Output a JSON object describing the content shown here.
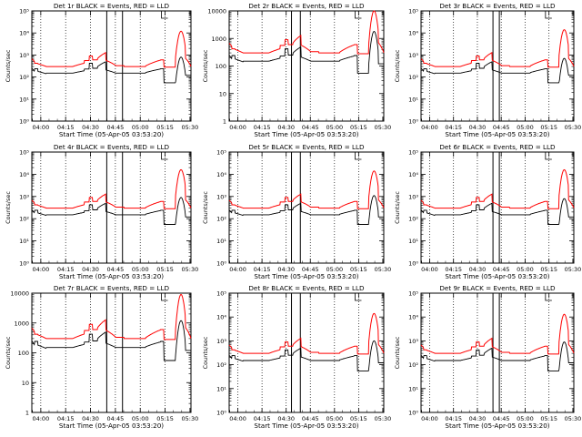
{
  "figure": {
    "xlabel": "Start Time (05-Apr-05 03:53:20)",
    "ylabel": "Counts/sec",
    "xticks": [
      "04:00",
      "04:15",
      "04:30",
      "04:45",
      "05:00",
      "05:15",
      "05:30"
    ],
    "colors": {
      "events": "#000000",
      "lld": "#ff0000",
      "axes": "#000000"
    }
  },
  "chart_data": [
    {
      "type": "line",
      "title": "Det 1r BLACK = Events, RED = LLD",
      "ylim": [
        1,
        100000
      ],
      "ytick_style": "exp",
      "ytick_labels": [
        "10⁰",
        "10¹",
        "10²",
        "10³",
        "10⁴",
        "10⁵"
      ],
      "xlim_minutes": [
        1.3,
        97.3
      ],
      "x_dotted_minutes": [
        6.7,
        21.7,
        36.7,
        51.7,
        66.7,
        81.7
      ],
      "x_solid_minutes": [
        46.5,
        56.0
      ],
      "series": [
        {
          "name": "Events",
          "color": "#000000",
          "peak": 800,
          "early_spikes": [
            150,
            190,
            450
          ]
        },
        {
          "name": "LLD",
          "color": "#ff0000",
          "peak": 12000,
          "early_spikes": [
            550,
            380,
            1200
          ]
        }
      ]
    },
    {
      "type": "line",
      "title": "Det 2r BLACK = Events, RED = LLD",
      "ylim": [
        1,
        10000
      ],
      "ytick_style": "plain",
      "ytick_labels": [
        "1",
        "10",
        "100",
        "1000",
        "10000"
      ],
      "xlim_minutes": [
        1.3,
        97.3
      ],
      "x_dotted_minutes": [
        6.7,
        21.7,
        36.7,
        51.7,
        66.7,
        81.7
      ],
      "x_solid_minutes": [
        40.0,
        45.5
      ],
      "series": [
        {
          "name": "Events",
          "color": "#000000",
          "peak": 1800,
          "early_spikes": [
            150,
            190,
            450
          ]
        },
        {
          "name": "LLD",
          "color": "#ff0000",
          "peak": 10000,
          "early_spikes": [
            600,
            400,
            1500
          ]
        }
      ]
    },
    {
      "type": "line",
      "title": "Det 3r BLACK = Events, RED = LLD",
      "ylim": [
        1,
        100000
      ],
      "ytick_style": "exp",
      "ytick_labels": [
        "10⁰",
        "10¹",
        "10²",
        "10³",
        "10⁴",
        "10⁵"
      ],
      "xlim_minutes": [
        1.3,
        97.3
      ],
      "x_dotted_minutes": [
        6.7,
        21.7,
        36.7,
        51.7,
        66.7,
        81.7
      ],
      "x_solid_minutes": [
        46.5,
        50.5
      ],
      "series": [
        {
          "name": "Events",
          "color": "#000000",
          "peak": 700,
          "early_spikes": [
            150,
            190,
            450
          ]
        },
        {
          "name": "LLD",
          "color": "#ff0000",
          "peak": 14000,
          "early_spikes": [
            550,
            380,
            1200
          ]
        }
      ]
    },
    {
      "type": "line",
      "title": "Det 4r BLACK = Events, RED = LLD",
      "ylim": [
        1,
        100000
      ],
      "ytick_style": "exp",
      "ytick_labels": [
        "10⁰",
        "10¹",
        "10²",
        "10³",
        "10⁴",
        "10⁵"
      ],
      "xlim_minutes": [
        1.3,
        97.3
      ],
      "x_dotted_minutes": [
        6.7,
        21.7,
        36.7,
        51.7,
        66.7,
        81.7
      ],
      "x_solid_minutes": [
        46.5,
        56.0
      ],
      "series": [
        {
          "name": "Events",
          "color": "#000000",
          "peak": 900,
          "early_spikes": [
            150,
            190,
            450
          ]
        },
        {
          "name": "LLD",
          "color": "#ff0000",
          "peak": 16000,
          "early_spikes": [
            550,
            380,
            1200
          ]
        }
      ]
    },
    {
      "type": "line",
      "title": "Det 5r BLACK = Events, RED = LLD",
      "ylim": [
        1,
        100000
      ],
      "ytick_style": "exp",
      "ytick_labels": [
        "10⁰",
        "10¹",
        "10²",
        "10³",
        "10⁴",
        "10⁵"
      ],
      "xlim_minutes": [
        1.3,
        97.3
      ],
      "x_dotted_minutes": [
        6.7,
        21.7,
        36.7,
        51.7,
        66.7,
        81.7
      ],
      "x_solid_minutes": [
        40.0,
        45.5
      ],
      "series": [
        {
          "name": "Events",
          "color": "#000000",
          "peak": 1100,
          "early_spikes": [
            150,
            190,
            450
          ]
        },
        {
          "name": "LLD",
          "color": "#ff0000",
          "peak": 14000,
          "early_spikes": [
            600,
            400,
            1500
          ]
        }
      ]
    },
    {
      "type": "line",
      "title": "Det 6r BLACK = Events, RED = LLD",
      "ylim": [
        1,
        100000
      ],
      "ytick_style": "exp",
      "ytick_labels": [
        "10⁰",
        "10¹",
        "10²",
        "10³",
        "10⁴",
        "10⁵"
      ],
      "xlim_minutes": [
        1.3,
        97.3
      ],
      "x_dotted_minutes": [
        6.7,
        21.7,
        36.7,
        51.7,
        66.7,
        81.7
      ],
      "x_solid_minutes": [
        46.5,
        50.5
      ],
      "series": [
        {
          "name": "Events",
          "color": "#000000",
          "peak": 800,
          "early_spikes": [
            150,
            190,
            450
          ]
        },
        {
          "name": "LLD",
          "color": "#ff0000",
          "peak": 16000,
          "early_spikes": [
            550,
            380,
            1200
          ]
        }
      ]
    },
    {
      "type": "line",
      "title": "Det 7r BLACK = Events, RED = LLD",
      "ylim": [
        1,
        10000
      ],
      "ytick_style": "plain",
      "ytick_labels": [
        "1",
        "10",
        "100",
        "1000",
        "10000"
      ],
      "xlim_minutes": [
        1.3,
        97.3
      ],
      "x_dotted_minutes": [
        6.7,
        21.7,
        36.7,
        51.7,
        66.7,
        81.7
      ],
      "x_solid_minutes": [
        46.5,
        56.0
      ],
      "series": [
        {
          "name": "Events",
          "color": "#000000",
          "peak": 1200,
          "early_spikes": [
            150,
            190,
            450
          ]
        },
        {
          "name": "LLD",
          "color": "#ff0000",
          "peak": 9000,
          "early_spikes": [
            600,
            400,
            1500
          ]
        }
      ]
    },
    {
      "type": "line",
      "title": "Det 8r BLACK = Events, RED = LLD",
      "ylim": [
        1,
        100000
      ],
      "ytick_style": "exp",
      "ytick_labels": [
        "10⁰",
        "10¹",
        "10²",
        "10³",
        "10⁴",
        "10⁵"
      ],
      "xlim_minutes": [
        1.3,
        97.3
      ],
      "x_dotted_minutes": [
        6.7,
        21.7,
        36.7,
        51.7,
        66.7,
        81.7
      ],
      "x_solid_minutes": [
        40.0,
        45.5
      ],
      "series": [
        {
          "name": "Events",
          "color": "#000000",
          "peak": 1000,
          "early_spikes": [
            150,
            190,
            450
          ]
        },
        {
          "name": "LLD",
          "color": "#ff0000",
          "peak": 14000,
          "early_spikes": [
            550,
            380,
            1200
          ]
        }
      ]
    },
    {
      "type": "line",
      "title": "Det 9r BLACK = Events, RED = LLD",
      "ylim": [
        1,
        100000
      ],
      "ytick_style": "exp",
      "ytick_labels": [
        "10⁰",
        "10¹",
        "10²",
        "10³",
        "10⁴",
        "10⁵"
      ],
      "xlim_minutes": [
        1.3,
        97.3
      ],
      "x_dotted_minutes": [
        6.7,
        21.7,
        36.7,
        51.7,
        66.7,
        81.7
      ],
      "x_solid_minutes": [
        46.5,
        50.5
      ],
      "series": [
        {
          "name": "Events",
          "color": "#000000",
          "peak": 900,
          "early_spikes": [
            150,
            190,
            450
          ]
        },
        {
          "name": "LLD",
          "color": "#ff0000",
          "peak": 13000,
          "early_spikes": [
            550,
            380,
            1200
          ]
        }
      ]
    }
  ]
}
